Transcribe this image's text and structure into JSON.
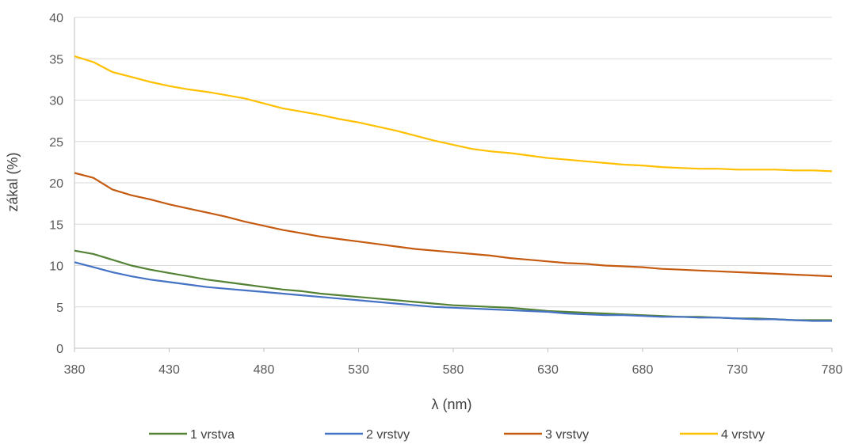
{
  "chart_data": {
    "type": "line",
    "title": "",
    "xlabel": "λ (nm)",
    "ylabel": "zákal (%)",
    "xlim": [
      380,
      780
    ],
    "ylim": [
      0,
      40
    ],
    "x_ticks": [
      380,
      430,
      480,
      530,
      580,
      630,
      680,
      730,
      780
    ],
    "y_ticks": [
      0,
      5,
      10,
      15,
      20,
      25,
      30,
      35,
      40
    ],
    "grid": "horizontal",
    "legend_position": "bottom",
    "x": [
      380,
      390,
      400,
      410,
      420,
      430,
      440,
      450,
      460,
      470,
      480,
      490,
      500,
      510,
      520,
      530,
      540,
      550,
      560,
      570,
      580,
      590,
      600,
      610,
      620,
      630,
      640,
      650,
      660,
      670,
      680,
      690,
      700,
      710,
      720,
      730,
      740,
      750,
      760,
      770,
      780
    ],
    "series": [
      {
        "name": "1 vrstva",
        "color": "#548235",
        "values": [
          11.8,
          11.4,
          10.7,
          10.0,
          9.5,
          9.1,
          8.7,
          8.3,
          8.0,
          7.7,
          7.4,
          7.1,
          6.9,
          6.6,
          6.4,
          6.2,
          6.0,
          5.8,
          5.6,
          5.4,
          5.2,
          5.1,
          5.0,
          4.9,
          4.7,
          4.5,
          4.4,
          4.3,
          4.2,
          4.1,
          4.0,
          3.9,
          3.8,
          3.8,
          3.7,
          3.6,
          3.6,
          3.5,
          3.4,
          3.4,
          3.4
        ]
      },
      {
        "name": "2 vrstvy",
        "color": "#4472c4",
        "values": [
          10.4,
          9.8,
          9.2,
          8.7,
          8.3,
          8.0,
          7.7,
          7.4,
          7.2,
          7.0,
          6.8,
          6.6,
          6.4,
          6.2,
          6.0,
          5.8,
          5.6,
          5.4,
          5.2,
          5.0,
          4.9,
          4.8,
          4.7,
          4.6,
          4.5,
          4.4,
          4.2,
          4.1,
          4.0,
          4.0,
          3.9,
          3.8,
          3.8,
          3.7,
          3.7,
          3.6,
          3.5,
          3.5,
          3.4,
          3.3,
          3.3
        ]
      },
      {
        "name": "3 vrstvy",
        "color": "#c55a11",
        "values": [
          21.2,
          20.6,
          19.2,
          18.5,
          18.0,
          17.4,
          16.9,
          16.4,
          15.9,
          15.3,
          14.8,
          14.3,
          13.9,
          13.5,
          13.2,
          12.9,
          12.6,
          12.3,
          12.0,
          11.8,
          11.6,
          11.4,
          11.2,
          10.9,
          10.7,
          10.5,
          10.3,
          10.2,
          10.0,
          9.9,
          9.8,
          9.6,
          9.5,
          9.4,
          9.3,
          9.2,
          9.1,
          9.0,
          8.9,
          8.8,
          8.7
        ]
      },
      {
        "name": "4 vrstvy",
        "color": "#ffc000",
        "values": [
          35.3,
          34.6,
          33.4,
          32.8,
          32.2,
          31.7,
          31.3,
          31.0,
          30.6,
          30.2,
          29.6,
          29.0,
          28.6,
          28.2,
          27.7,
          27.3,
          26.8,
          26.3,
          25.7,
          25.1,
          24.6,
          24.1,
          23.8,
          23.6,
          23.3,
          23.0,
          22.8,
          22.6,
          22.4,
          22.2,
          22.1,
          21.9,
          21.8,
          21.7,
          21.7,
          21.6,
          21.6,
          21.6,
          21.5,
          21.5,
          21.4
        ]
      }
    ]
  }
}
